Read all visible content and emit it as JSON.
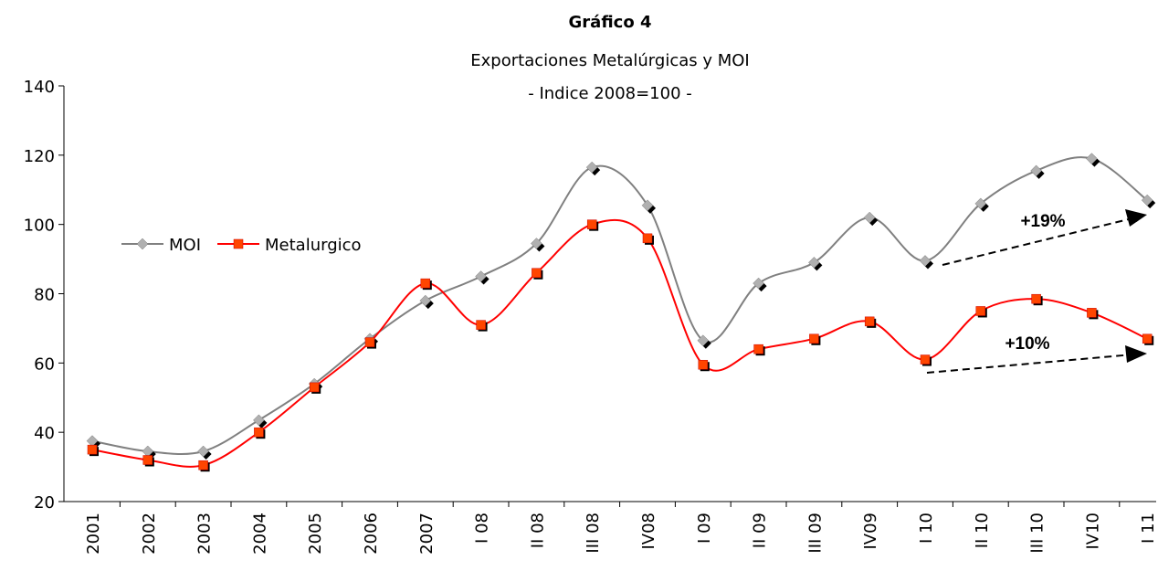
{
  "chart_data": {
    "type": "line",
    "title": "Gráfico 4",
    "subtitle": "Exportaciones Metalúrgicas y MOI",
    "subtitle2": "- Indice 2008=100 -",
    "categories": [
      "2001",
      "2002",
      "2003",
      "2004",
      "2005",
      "2006",
      "2007",
      "I 08",
      "II 08",
      "III 08",
      "IV08",
      "I 09",
      "II 09",
      "III 09",
      "IV09",
      "I 10",
      "II 10",
      "III 10",
      "IV10",
      "I 11"
    ],
    "series": [
      {
        "name": "MOI",
        "color": "#808080",
        "marker_color": "#b0b0b0",
        "values": [
          37.5,
          34.5,
          34.5,
          43.5,
          54,
          67,
          78,
          85,
          94.5,
          116.5,
          105.5,
          66.5,
          83,
          89,
          102,
          89.5,
          106,
          115.5,
          119,
          107
        ]
      },
      {
        "name": "Metalurgico",
        "color": "#ff0000",
        "marker_color": "#ff4500",
        "values": [
          35,
          32,
          30.5,
          40,
          53,
          66,
          83,
          71,
          86,
          100,
          96,
          59.5,
          64,
          67,
          72,
          61,
          75,
          78.5,
          74.5,
          67
        ]
      }
    ],
    "annotations": [
      "+19%",
      "+10%"
    ],
    "ylim": [
      20,
      140
    ],
    "yticks": [
      20,
      40,
      60,
      80,
      100,
      120,
      140
    ],
    "legend": "left",
    "grid": false
  }
}
